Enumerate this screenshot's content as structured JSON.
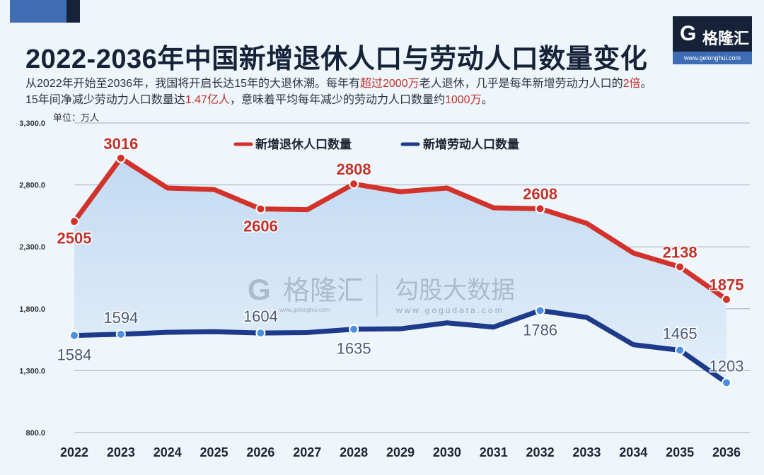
{
  "header": {
    "title": "2022-2036年中国新增退休人口与劳动人口数量变化",
    "subtitle_lines": [
      [
        {
          "t": "从2022年开始至2036年，我国将开启长达15年的大退休潮。每年有"
        },
        {
          "t": "超过2000万",
          "hl": true
        },
        {
          "t": "老人退休，几乎是每年新增劳动力人口的"
        },
        {
          "t": "2倍",
          "hl": true
        },
        {
          "t": "。"
        }
      ],
      [
        {
          "t": "15年间净减少劳动力人口数量达"
        },
        {
          "t": "1.47亿人",
          "hl": true
        },
        {
          "t": "，意味着平均每年减少的劳动力人口数量约"
        },
        {
          "t": "1000万",
          "hl": true
        },
        {
          "t": "。"
        }
      ]
    ],
    "highlight_color": "#c0322b"
  },
  "logo": {
    "name": "格隆汇",
    "url": "www.gelonghui.com"
  },
  "watermark": {
    "brand1": "格隆汇",
    "url1": "www.gelonghui.com",
    "brand2": "勾股大数据",
    "url2": "www.gogudata.com"
  },
  "chart_data": {
    "type": "line",
    "unit_label": "单位：万人",
    "categories": [
      "2022",
      "2023",
      "2024",
      "2025",
      "2026",
      "2027",
      "2028",
      "2029",
      "2030",
      "2031",
      "2032",
      "2033",
      "2034",
      "2035",
      "2036"
    ],
    "ylim": [
      800,
      3300
    ],
    "yticks": [
      "800.0",
      "1,300.0",
      "1,800.0",
      "2,300.0",
      "2,800.0",
      "3,300.0"
    ],
    "ytick_values": [
      800,
      1300,
      1800,
      2300,
      2800,
      3300
    ],
    "grid": true,
    "legend_position": "top-center",
    "series": [
      {
        "name": "新增退休人口数量",
        "color": "#d3322b",
        "label_color": "#c0322b",
        "values": [
          2505,
          3016,
          2775,
          2763,
          2606,
          2600,
          2808,
          2745,
          2775,
          2615,
          2608,
          2490,
          2250,
          2138,
          1875
        ],
        "labeled": [
          0,
          1,
          4,
          6,
          10,
          13,
          14
        ]
      },
      {
        "name": "新增劳动人口数量",
        "color": "#1e3a8a",
        "label_color": "#4a5878",
        "values": [
          1584,
          1594,
          1610,
          1615,
          1604,
          1608,
          1635,
          1638,
          1686,
          1652,
          1786,
          1730,
          1510,
          1465,
          1203
        ],
        "labeled": [
          0,
          1,
          4,
          6,
          10,
          13,
          14
        ]
      }
    ],
    "fill_between": "#c9def3"
  }
}
